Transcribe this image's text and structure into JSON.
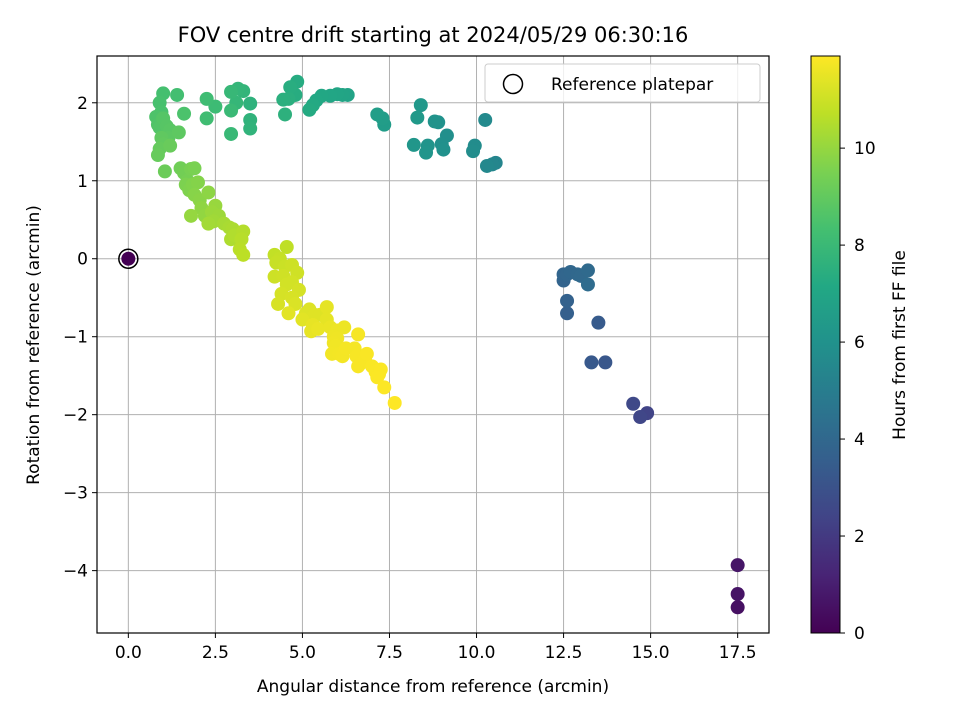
{
  "chart_data": {
    "type": "scatter",
    "title": "FOV centre drift starting at 2024/05/29 06:30:16",
    "xlabel": "Angular distance from reference (arcmin)",
    "ylabel": "Rotation from reference (arcmin)",
    "xlim": [
      -0.9,
      18.4
    ],
    "ylim": [
      -4.8,
      2.6
    ],
    "xticks": [
      0.0,
      2.5,
      5.0,
      7.5,
      10.0,
      12.5,
      15.0,
      17.5
    ],
    "xtick_labels": [
      "0.0",
      "2.5",
      "5.0",
      "7.5",
      "10.0",
      "12.5",
      "15.0",
      "17.5"
    ],
    "yticks": [
      -4,
      -3,
      -2,
      -1,
      0,
      1,
      2
    ],
    "ytick_labels": [
      "−4",
      "−3",
      "−2",
      "−1",
      "0",
      "1",
      "2"
    ],
    "grid": true,
    "legend": {
      "position": "top-right",
      "entries": [
        "Reference platepar"
      ]
    },
    "reference_point": {
      "x": 0.0,
      "y": 0.0,
      "hours": 0.0
    },
    "colorbar": {
      "label": "Hours from first FF file",
      "range": [
        0,
        11.9
      ],
      "ticks": [
        0,
        2,
        4,
        6,
        8,
        10
      ],
      "tick_labels": [
        "0",
        "2",
        "4",
        "6",
        "8",
        "10"
      ],
      "colormap": "viridis"
    },
    "series": [
      {
        "points": [
          [
            17.5,
            -4.47,
            0.5
          ],
          [
            17.5,
            -4.3,
            0.6
          ],
          [
            17.5,
            -3.93,
            0.7
          ],
          [
            14.9,
            -1.98,
            2.4
          ],
          [
            14.7,
            -2.03,
            2.5
          ],
          [
            14.5,
            -1.86,
            2.6
          ],
          [
            13.7,
            -1.33,
            3.2
          ],
          [
            13.3,
            -1.33,
            3.3
          ],
          [
            13.5,
            -0.82,
            3.4
          ],
          [
            12.6,
            -0.7,
            3.6
          ],
          [
            12.6,
            -0.54,
            3.7
          ],
          [
            12.5,
            -0.28,
            3.8
          ],
          [
            12.5,
            -0.2,
            3.85
          ],
          [
            12.6,
            -0.2,
            3.9
          ],
          [
            12.7,
            -0.17,
            3.95
          ],
          [
            12.9,
            -0.2,
            4.0
          ],
          [
            13.0,
            -0.22,
            4.05
          ],
          [
            13.2,
            -0.15,
            4.1
          ],
          [
            13.2,
            -0.33,
            4.2
          ],
          [
            10.55,
            1.23,
            5.4
          ],
          [
            10.45,
            1.21,
            5.45
          ],
          [
            10.3,
            1.19,
            5.5
          ],
          [
            10.25,
            1.78,
            5.6
          ],
          [
            9.95,
            1.45,
            5.7
          ],
          [
            9.9,
            1.38,
            5.75
          ],
          [
            9.15,
            1.58,
            5.85
          ],
          [
            9.0,
            1.47,
            5.9
          ],
          [
            9.05,
            1.4,
            5.95
          ],
          [
            8.9,
            1.75,
            6.0
          ],
          [
            8.8,
            1.76,
            6.05
          ],
          [
            8.6,
            1.45,
            6.1
          ],
          [
            8.55,
            1.36,
            6.15
          ],
          [
            8.2,
            1.46,
            6.2
          ],
          [
            8.4,
            1.97,
            6.3
          ],
          [
            8.3,
            1.81,
            6.35
          ],
          [
            7.35,
            1.72,
            6.5
          ],
          [
            7.3,
            1.8,
            6.55
          ],
          [
            7.15,
            1.85,
            6.6
          ],
          [
            6.3,
            2.1,
            6.9
          ],
          [
            6.15,
            2.1,
            6.95
          ],
          [
            6.0,
            2.11,
            7.0
          ],
          [
            5.8,
            2.09,
            7.05
          ],
          [
            5.55,
            2.09,
            7.1
          ],
          [
            5.4,
            2.03,
            7.15
          ],
          [
            5.3,
            1.97,
            7.2
          ],
          [
            5.2,
            1.91,
            7.25
          ],
          [
            4.85,
            2.27,
            7.3
          ],
          [
            4.8,
            2.1,
            7.35
          ],
          [
            4.65,
            2.2,
            7.4
          ],
          [
            4.6,
            2.05,
            7.45
          ],
          [
            4.45,
            2.04,
            7.5
          ],
          [
            4.5,
            1.85,
            7.55
          ],
          [
            3.5,
            1.99,
            7.6
          ],
          [
            3.5,
            1.78,
            7.65
          ],
          [
            3.5,
            1.67,
            7.7
          ],
          [
            3.3,
            2.15,
            7.75
          ],
          [
            3.15,
            2.18,
            7.8
          ],
          [
            3.1,
            2.0,
            7.85
          ],
          [
            2.95,
            2.14,
            7.9
          ],
          [
            2.95,
            1.6,
            7.95
          ],
          [
            2.95,
            1.9,
            8.0
          ],
          [
            2.5,
            1.95,
            8.1
          ],
          [
            2.25,
            2.05,
            8.15
          ],
          [
            2.25,
            1.8,
            8.2
          ],
          [
            1.4,
            2.1,
            8.3
          ],
          [
            1.0,
            2.12,
            8.35
          ],
          [
            0.9,
            2.0,
            8.4
          ],
          [
            0.95,
            1.88,
            8.45
          ],
          [
            1.6,
            1.86,
            8.5
          ],
          [
            0.8,
            1.82,
            8.55
          ],
          [
            0.85,
            1.72,
            8.6
          ],
          [
            0.9,
            1.68,
            8.65
          ],
          [
            1.0,
            1.8,
            8.7
          ],
          [
            1.1,
            1.7,
            8.75
          ],
          [
            1.2,
            1.65,
            8.8
          ],
          [
            1.15,
            1.55,
            8.85
          ],
          [
            1.45,
            1.62,
            8.9
          ],
          [
            0.95,
            1.55,
            8.95
          ],
          [
            1.0,
            1.47,
            9.0
          ],
          [
            0.9,
            1.41,
            9.05
          ],
          [
            0.85,
            1.33,
            9.1
          ],
          [
            1.2,
            1.45,
            9.15
          ],
          [
            1.05,
            1.12,
            9.2
          ],
          [
            1.5,
            1.16,
            9.3
          ],
          [
            1.6,
            1.1,
            9.35
          ],
          [
            1.7,
            1.0,
            9.4
          ],
          [
            1.8,
            1.15,
            9.45
          ],
          [
            1.9,
            1.16,
            9.5
          ],
          [
            1.65,
            0.95,
            9.55
          ],
          [
            1.75,
            0.88,
            9.6
          ],
          [
            1.85,
            0.95,
            9.65
          ],
          [
            2.0,
            0.98,
            9.7
          ],
          [
            1.9,
            0.82,
            9.75
          ],
          [
            2.05,
            0.75,
            9.8
          ],
          [
            2.3,
            0.85,
            9.85
          ],
          [
            2.1,
            0.65,
            9.9
          ],
          [
            2.2,
            0.55,
            9.95
          ],
          [
            1.8,
            0.55,
            10.0
          ],
          [
            2.5,
            0.68,
            10.05
          ],
          [
            2.4,
            0.6,
            10.1
          ],
          [
            2.6,
            0.55,
            10.15
          ],
          [
            2.45,
            0.48,
            10.2
          ],
          [
            2.3,
            0.45,
            10.25
          ],
          [
            2.75,
            0.45,
            10.3
          ],
          [
            2.9,
            0.4,
            10.35
          ],
          [
            3.0,
            0.38,
            10.4
          ],
          [
            2.95,
            0.25,
            10.45
          ],
          [
            3.05,
            0.3,
            10.5
          ],
          [
            3.3,
            0.35,
            10.55
          ],
          [
            3.25,
            0.25,
            10.6
          ],
          [
            3.2,
            0.12,
            10.65
          ],
          [
            3.3,
            0.05,
            10.7
          ],
          [
            4.55,
            0.15,
            10.75
          ],
          [
            4.2,
            0.05,
            10.8
          ],
          [
            4.35,
            0.0,
            10.85
          ],
          [
            4.25,
            -0.05,
            10.9
          ],
          [
            4.5,
            -0.1,
            10.95
          ],
          [
            4.7,
            -0.08,
            11.0
          ],
          [
            4.2,
            -0.23,
            11.0
          ],
          [
            4.45,
            -0.22,
            11.05
          ],
          [
            4.85,
            -0.18,
            11.05
          ],
          [
            4.7,
            -0.3,
            11.1
          ],
          [
            4.55,
            -0.33,
            11.1
          ],
          [
            4.9,
            -0.4,
            11.15
          ],
          [
            4.4,
            -0.45,
            11.15
          ],
          [
            4.7,
            -0.5,
            11.2
          ],
          [
            4.3,
            -0.58,
            11.2
          ],
          [
            4.8,
            -0.58,
            11.25
          ],
          [
            5.2,
            -0.65,
            11.3
          ],
          [
            5.1,
            -0.7,
            11.3
          ],
          [
            5.35,
            -0.72,
            11.35
          ],
          [
            5.5,
            -0.72,
            11.35
          ],
          [
            4.6,
            -0.7,
            11.4
          ],
          [
            5.0,
            -0.78,
            11.4
          ],
          [
            5.7,
            -0.62,
            11.45
          ],
          [
            5.7,
            -0.78,
            11.45
          ],
          [
            5.3,
            -0.85,
            11.5
          ],
          [
            5.25,
            -0.93,
            11.5
          ],
          [
            5.45,
            -0.9,
            11.55
          ],
          [
            5.8,
            -0.88,
            11.55
          ],
          [
            6.0,
            -0.92,
            11.6
          ],
          [
            6.2,
            -0.88,
            11.6
          ],
          [
            5.9,
            -1.0,
            11.62
          ],
          [
            6.0,
            -1.02,
            11.64
          ],
          [
            5.9,
            -1.08,
            11.66
          ],
          [
            5.95,
            -1.12,
            11.68
          ],
          [
            5.85,
            -1.22,
            11.7
          ],
          [
            6.05,
            -1.22,
            11.72
          ],
          [
            6.15,
            -1.25,
            11.74
          ],
          [
            6.25,
            -1.15,
            11.75
          ],
          [
            6.5,
            -1.15,
            11.76
          ],
          [
            6.6,
            -0.97,
            11.77
          ],
          [
            6.55,
            -1.25,
            11.78
          ],
          [
            6.65,
            -1.35,
            11.79
          ],
          [
            6.6,
            -1.38,
            11.8
          ],
          [
            6.8,
            -1.3,
            11.81
          ],
          [
            6.85,
            -1.22,
            11.82
          ],
          [
            7.0,
            -1.38,
            11.83
          ],
          [
            7.1,
            -1.45,
            11.84
          ],
          [
            7.2,
            -1.48,
            11.85
          ],
          [
            7.25,
            -1.42,
            11.86
          ],
          [
            7.15,
            -1.52,
            11.87
          ],
          [
            7.35,
            -1.65,
            11.88
          ],
          [
            7.65,
            -1.85,
            11.9
          ]
        ]
      }
    ]
  }
}
